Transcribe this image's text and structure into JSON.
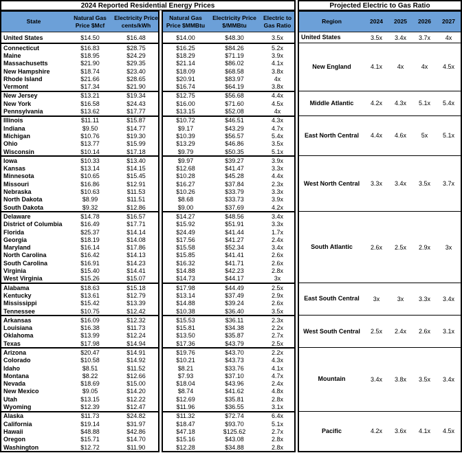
{
  "colors": {
    "header_blue": "#6CA0D8",
    "border": "#000000",
    "background": "#FFFFFF"
  },
  "chart_data": {
    "type": "table",
    "left_table": {
      "title": "2024 Reported Residential Energy Prices",
      "columns": [
        [
          "State"
        ],
        [
          "Natural Gas",
          "Price $Mcf"
        ],
        [
          "Electricity Price",
          "cents/kWh"
        ],
        [
          "Natural Gas",
          "Price $MMBtu"
        ],
        [
          "Electricity Price",
          "$/MMBtu"
        ],
        [
          "Electric to",
          "Gas Ratio"
        ]
      ]
    },
    "right_table": {
      "title": "Projected Electric to Gas Ratio",
      "columns": [
        "Region",
        "2024",
        "2025",
        "2026",
        "2027"
      ]
    },
    "groups": [
      {
        "region": "United States",
        "projections": [
          "3.5x",
          "3.4x",
          "3.7x",
          "4x"
        ],
        "rows": [
          [
            "United States",
            "$14.50",
            "$16.48",
            "$14.00",
            "$48.30",
            "3.5x"
          ]
        ]
      },
      {
        "region": "New England",
        "projections": [
          "4.1x",
          "4x",
          "4x",
          "4.5x"
        ],
        "rows": [
          [
            "Connecticut",
            "$16.83",
            "$28.75",
            "$16.25",
            "$84.26",
            "5.2x"
          ],
          [
            "Maine",
            "$18.95",
            "$24.29",
            "$18.29",
            "$71.19",
            "3.9x"
          ],
          [
            "Massachusetts",
            "$21.90",
            "$29.35",
            "$21.14",
            "$86.02",
            "4.1x"
          ],
          [
            "New Hampshire",
            "$18.74",
            "$23.40",
            "$18.09",
            "$68.58",
            "3.8x"
          ],
          [
            "Rhode Island",
            "$21.66",
            "$28.65",
            "$20.91",
            "$83.97",
            "4x"
          ],
          [
            "Vermont",
            "$17.34",
            "$21.90",
            "$16.74",
            "$64.19",
            "3.8x"
          ]
        ]
      },
      {
        "region": "Middle Atlantic",
        "projections": [
          "4.2x",
          "4.3x",
          "5.1x",
          "5.4x"
        ],
        "rows": [
          [
            "New Jersey",
            "$13.21",
            "$19.34",
            "$12.75",
            "$56.68",
            "4.4x"
          ],
          [
            "New York",
            "$16.58",
            "$24.43",
            "$16.00",
            "$71.60",
            "4.5x"
          ],
          [
            "Pennsylvania",
            "$13.62",
            "$17.77",
            "$13.15",
            "$52.08",
            "4x"
          ]
        ]
      },
      {
        "region": "East North Central",
        "projections": [
          "4.4x",
          "4.6x",
          "5x",
          "5.1x"
        ],
        "rows": [
          [
            "Illinois",
            "$11.11",
            "$15.87",
            "$10.72",
            "$46.51",
            "4.3x"
          ],
          [
            "Indiana",
            "$9.50",
            "$14.77",
            "$9.17",
            "$43.29",
            "4.7x"
          ],
          [
            "Michigan",
            "$10.76",
            "$19.30",
            "$10.39",
            "$56.57",
            "5.4x"
          ],
          [
            "Ohio",
            "$13.77",
            "$15.99",
            "$13.29",
            "$46.86",
            "3.5x"
          ],
          [
            "Wisconsin",
            "$10.14",
            "$17.18",
            "$9.79",
            "$50.35",
            "5.1x"
          ]
        ]
      },
      {
        "region": "West North Central",
        "projections": [
          "3.3x",
          "3.4x",
          "3.5x",
          "3.7x"
        ],
        "rows": [
          [
            "Iowa",
            "$10.33",
            "$13.40",
            "$9.97",
            "$39.27",
            "3.9x"
          ],
          [
            "Kansas",
            "$13.14",
            "$14.15",
            "$12.68",
            "$41.47",
            "3.3x"
          ],
          [
            "Minnesota",
            "$10.65",
            "$15.45",
            "$10.28",
            "$45.28",
            "4.4x"
          ],
          [
            "Missouri",
            "$16.86",
            "$12.91",
            "$16.27",
            "$37.84",
            "2.3x"
          ],
          [
            "Nebraska",
            "$10.63",
            "$11.53",
            "$10.26",
            "$33.79",
            "3.3x"
          ],
          [
            "North Dakota",
            "$8.99",
            "$11.51",
            "$8.68",
            "$33.73",
            "3.9x"
          ],
          [
            "South Dakota",
            "$9.32",
            "$12.86",
            "$9.00",
            "$37.69",
            "4.2x"
          ]
        ]
      },
      {
        "region": "South Atlantic",
        "projections": [
          "2.6x",
          "2.5x",
          "2.9x",
          "3x"
        ],
        "rows": [
          [
            "Delaware",
            "$14.78",
            "$16.57",
            "$14.27",
            "$48.56",
            "3.4x"
          ],
          [
            "District of Columbia",
            "$16.49",
            "$17.71",
            "$15.92",
            "$51.91",
            "3.3x"
          ],
          [
            "Florida",
            "$25.37",
            "$14.14",
            "$24.49",
            "$41.44",
            "1.7x"
          ],
          [
            "Georgia",
            "$18.19",
            "$14.08",
            "$17.56",
            "$41.27",
            "2.4x"
          ],
          [
            "Maryland",
            "$16.14",
            "$17.86",
            "$15.58",
            "$52.34",
            "3.4x"
          ],
          [
            "North Carolina",
            "$16.42",
            "$14.13",
            "$15.85",
            "$41.41",
            "2.6x"
          ],
          [
            "South Carolina",
            "$16.91",
            "$14.23",
            "$16.32",
            "$41.71",
            "2.6x"
          ],
          [
            "Virginia",
            "$15.40",
            "$14.41",
            "$14.88",
            "$42.23",
            "2.8x"
          ],
          [
            "West Virginia",
            "$15.26",
            "$15.07",
            "$14.73",
            "$44.17",
            "3x"
          ]
        ]
      },
      {
        "region": "East South Central",
        "projections": [
          "3x",
          "3x",
          "3.3x",
          "3.4x"
        ],
        "rows": [
          [
            "Alabama",
            "$18.63",
            "$15.18",
            "$17.98",
            "$44.49",
            "2.5x"
          ],
          [
            "Kentucky",
            "$13.61",
            "$12.79",
            "$13.14",
            "$37.49",
            "2.9x"
          ],
          [
            "Mississippi",
            "$15.42",
            "$13.39",
            "$14.88",
            "$39.24",
            "2.6x"
          ],
          [
            "Tennessee",
            "$10.75",
            "$12.42",
            "$10.38",
            "$36.40",
            "3.5x"
          ]
        ]
      },
      {
        "region": "West South Central",
        "projections": [
          "2.5x",
          "2.4x",
          "2.6x",
          "3.1x"
        ],
        "rows": [
          [
            "Arkansas",
            "$16.09",
            "$12.32",
            "$15.53",
            "$36.11",
            "2.3x"
          ],
          [
            "Louisiana",
            "$16.38",
            "$11.73",
            "$15.81",
            "$34.38",
            "2.2x"
          ],
          [
            "Oklahoma",
            "$13.99",
            "$12.24",
            "$13.50",
            "$35.87",
            "2.7x"
          ],
          [
            "Texas",
            "$17.98",
            "$14.94",
            "$17.36",
            "$43.79",
            "2.5x"
          ]
        ]
      },
      {
        "region": "Mountain",
        "projections": [
          "3.4x",
          "3.8x",
          "3.5x",
          "3.4x"
        ],
        "rows": [
          [
            "Arizona",
            "$20.47",
            "$14.91",
            "$19.76",
            "$43.70",
            "2.2x"
          ],
          [
            "Colorado",
            "$10.58",
            "$14.92",
            "$10.21",
            "$43.73",
            "4.3x"
          ],
          [
            "Idaho",
            "$8.51",
            "$11.52",
            "$8.21",
            "$33.76",
            "4.1x"
          ],
          [
            "Montana",
            "$8.22",
            "$12.66",
            "$7.93",
            "$37.10",
            "4.7x"
          ],
          [
            "Nevada",
            "$18.69",
            "$15.00",
            "$18.04",
            "$43.96",
            "2.4x"
          ],
          [
            "New Mexico",
            "$9.05",
            "$14.20",
            "$8.74",
            "$41.62",
            "4.8x"
          ],
          [
            "Utah",
            "$13.15",
            "$12.22",
            "$12.69",
            "$35.81",
            "2.8x"
          ],
          [
            "Wyoming",
            "$12.39",
            "$12.47",
            "$11.96",
            "$36.55",
            "3.1x"
          ]
        ]
      },
      {
        "region": "Pacific",
        "projections": [
          "4.2x",
          "3.6x",
          "4.1x",
          "4.5x"
        ],
        "rows": [
          [
            "Alaska",
            "$11.73",
            "$24.82",
            "$11.32",
            "$72.74",
            "6.4x"
          ],
          [
            "California",
            "$19.14",
            "$31.97",
            "$18.47",
            "$93.70",
            "5.1x"
          ],
          [
            "Hawaii",
            "$48.88",
            "$42.86",
            "$47.18",
            "$125.62",
            "2.7x"
          ],
          [
            "Oregon",
            "$15.71",
            "$14.70",
            "$15.16",
            "$43.08",
            "2.8x"
          ],
          [
            "Washington",
            "$12.72",
            "$11.90",
            "$12.28",
            "$34.88",
            "2.8x"
          ]
        ]
      }
    ]
  }
}
